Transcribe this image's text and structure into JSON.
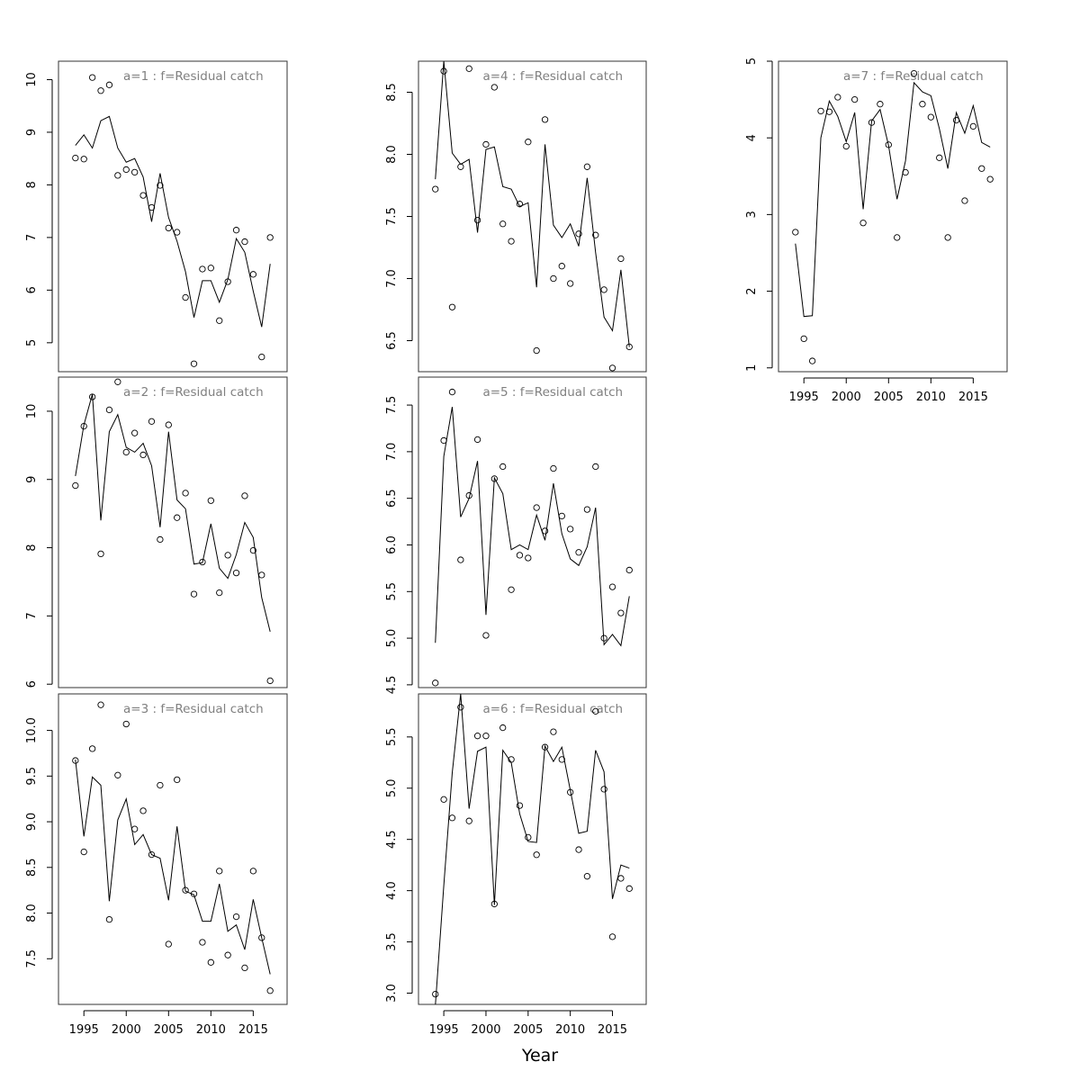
{
  "xlabel": "Year",
  "chart_data": [
    {
      "type": "line",
      "title": "a=1  :  f=Residual catch",
      "x": [
        1994,
        1995,
        1996,
        1997,
        1998,
        1999,
        2000,
        2001,
        2002,
        2003,
        2004,
        2005,
        2006,
        2007,
        2008,
        2009,
        2010,
        2011,
        2012,
        2013,
        2014,
        2015,
        2016,
        2017
      ],
      "xlim": [
        1992,
        2019
      ],
      "ylim": [
        4.45,
        10.35
      ],
      "xticks": [
        1995,
        2000,
        2005,
        2010,
        2015
      ],
      "yticks": [
        5,
        6,
        7,
        8,
        9,
        10
      ],
      "show_x_axis": false,
      "series": [
        {
          "role": "fitted",
          "values": [
            8.75,
            8.95,
            8.7,
            9.22,
            9.3,
            8.7,
            8.43,
            8.5,
            8.15,
            7.3,
            8.22,
            7.38,
            6.93,
            6.35,
            5.48,
            6.18,
            6.18,
            5.77,
            6.2,
            6.98,
            6.72,
            5.98,
            5.3,
            6.5
          ]
        },
        {
          "role": "observed",
          "values": [
            8.51,
            8.49,
            10.04,
            9.79,
            9.9,
            8.18,
            8.29,
            8.24,
            7.8,
            7.57,
            7.99,
            7.18,
            7.1,
            5.86,
            4.6,
            6.4,
            6.42,
            5.42,
            6.16,
            7.14,
            6.92,
            6.3,
            4.73,
            7.0
          ]
        }
      ]
    },
    {
      "type": "line",
      "title": "a=2  :  f=Residual catch",
      "x": [
        1994,
        1995,
        1996,
        1997,
        1998,
        1999,
        2000,
        2001,
        2002,
        2003,
        2004,
        2005,
        2006,
        2007,
        2008,
        2009,
        2010,
        2011,
        2012,
        2013,
        2014,
        2015,
        2016,
        2017
      ],
      "xlim": [
        1992,
        2019
      ],
      "ylim": [
        5.95,
        10.5
      ],
      "xticks": [
        1995,
        2000,
        2005,
        2010,
        2015
      ],
      "yticks": [
        6,
        7,
        8,
        9,
        10
      ],
      "show_x_axis": false,
      "series": [
        {
          "role": "fitted",
          "values": [
            9.05,
            9.8,
            10.25,
            8.4,
            9.7,
            9.95,
            9.47,
            9.4,
            9.53,
            9.2,
            8.3,
            9.7,
            8.7,
            8.57,
            7.76,
            7.78,
            8.35,
            7.7,
            7.55,
            7.9,
            8.37,
            8.15,
            7.27,
            6.77
          ]
        },
        {
          "role": "observed",
          "values": [
            8.91,
            9.78,
            10.21,
            7.91,
            10.02,
            10.43,
            9.4,
            9.68,
            9.36,
            9.85,
            8.12,
            9.8,
            8.44,
            8.8,
            7.32,
            7.79,
            8.69,
            7.34,
            7.89,
            7.63,
            8.76,
            7.96,
            7.6,
            6.05
          ]
        }
      ]
    },
    {
      "type": "line",
      "title": "a=3  :  f=Residual catch",
      "x": [
        1994,
        1995,
        1996,
        1997,
        1998,
        1999,
        2000,
        2001,
        2002,
        2003,
        2004,
        2005,
        2006,
        2007,
        2008,
        2009,
        2010,
        2011,
        2012,
        2013,
        2014,
        2015,
        2016,
        2017
      ],
      "xlim": [
        1992,
        2019
      ],
      "ylim": [
        7.0,
        10.4
      ],
      "xticks": [
        1995,
        2000,
        2005,
        2010,
        2015
      ],
      "yticks": [
        7.5,
        8.0,
        8.5,
        9.0,
        9.5,
        10.0
      ],
      "show_x_axis": true,
      "series": [
        {
          "role": "fitted",
          "values": [
            9.68,
            8.84,
            9.49,
            9.4,
            8.13,
            9.02,
            9.25,
            8.75,
            8.86,
            8.64,
            8.6,
            8.14,
            8.95,
            8.24,
            8.2,
            7.91,
            7.91,
            8.32,
            7.8,
            7.87,
            7.6,
            8.15,
            7.73,
            7.33
          ]
        },
        {
          "role": "observed",
          "values": [
            9.67,
            8.67,
            9.8,
            10.28,
            7.93,
            9.51,
            10.07,
            8.92,
            9.12,
            8.64,
            9.4,
            7.66,
            9.46,
            8.25,
            8.21,
            7.68,
            7.46,
            8.46,
            7.54,
            7.96,
            7.4,
            8.46,
            7.73,
            7.15
          ]
        }
      ]
    },
    {
      "type": "line",
      "title": "a=4  :  f=Residual catch",
      "x": [
        1994,
        1995,
        1996,
        1997,
        1998,
        1999,
        2000,
        2001,
        2002,
        2003,
        2004,
        2005,
        2006,
        2007,
        2008,
        2009,
        2010,
        2011,
        2012,
        2013,
        2014,
        2015,
        2016,
        2017
      ],
      "xlim": [
        1992,
        2019
      ],
      "ylim": [
        6.25,
        8.75
      ],
      "xticks": [
        1995,
        2000,
        2005,
        2010,
        2015
      ],
      "yticks": [
        6.5,
        7.0,
        7.5,
        8.0,
        8.5
      ],
      "show_x_axis": false,
      "series": [
        {
          "role": "fitted",
          "values": [
            7.8,
            8.75,
            8.01,
            7.92,
            7.96,
            7.37,
            8.04,
            8.06,
            7.74,
            7.72,
            7.58,
            7.61,
            6.93,
            8.08,
            7.43,
            7.33,
            7.44,
            7.26,
            7.81,
            7.21,
            6.69,
            6.58,
            7.07,
            6.45
          ]
        },
        {
          "role": "observed",
          "values": [
            7.72,
            8.67,
            6.77,
            7.9,
            8.69,
            7.47,
            8.08,
            8.54,
            7.44,
            7.3,
            7.6,
            8.1,
            6.42,
            8.28,
            7.0,
            7.1,
            6.96,
            7.36,
            7.9,
            7.35,
            6.91,
            6.28,
            7.16,
            6.45
          ]
        }
      ]
    },
    {
      "type": "line",
      "title": "a=5  :  f=Residual catch",
      "x": [
        1994,
        1995,
        1996,
        1997,
        1998,
        1999,
        2000,
        2001,
        2002,
        2003,
        2004,
        2005,
        2006,
        2007,
        2008,
        2009,
        2010,
        2011,
        2012,
        2013,
        2014,
        2015,
        2016,
        2017
      ],
      "xlim": [
        1992,
        2019
      ],
      "ylim": [
        4.47,
        7.8
      ],
      "xticks": [
        1995,
        2000,
        2005,
        2010,
        2015
      ],
      "yticks": [
        4.5,
        5.0,
        5.5,
        6.0,
        6.5,
        7.0,
        7.5
      ],
      "show_x_axis": false,
      "series": [
        {
          "role": "fitted",
          "values": [
            4.95,
            6.95,
            7.48,
            6.3,
            6.5,
            6.9,
            5.25,
            6.72,
            6.55,
            5.95,
            6.0,
            5.95,
            6.32,
            6.05,
            6.66,
            6.12,
            5.85,
            5.78,
            5.98,
            6.4,
            4.93,
            5.04,
            4.92,
            5.45
          ]
        },
        {
          "role": "observed",
          "values": [
            4.52,
            7.12,
            7.64,
            5.84,
            6.53,
            7.13,
            5.03,
            6.71,
            6.84,
            5.52,
            5.89,
            5.86,
            6.4,
            6.15,
            6.82,
            6.31,
            6.17,
            5.92,
            6.38,
            6.84,
            5.0,
            5.55,
            5.27,
            5.73
          ]
        }
      ]
    },
    {
      "type": "line",
      "title": "a=6  :  f=Residual catch",
      "x": [
        1994,
        1995,
        1996,
        1997,
        1998,
        1999,
        2000,
        2001,
        2002,
        2003,
        2004,
        2005,
        2006,
        2007,
        2008,
        2009,
        2010,
        2011,
        2012,
        2013,
        2014,
        2015,
        2016,
        2017
      ],
      "xlim": [
        1992,
        2019
      ],
      "ylim": [
        2.89,
        5.92
      ],
      "xticks": [
        1995,
        2000,
        2005,
        2010,
        2015
      ],
      "yticks": [
        3.0,
        3.5,
        4.0,
        4.5,
        5.0,
        5.5
      ],
      "show_x_axis": true,
      "series": [
        {
          "role": "fitted",
          "values": [
            2.88,
            4.05,
            5.15,
            5.92,
            4.8,
            5.36,
            5.4,
            3.86,
            5.37,
            5.25,
            4.75,
            4.48,
            4.47,
            5.41,
            5.26,
            5.4,
            4.98,
            4.56,
            4.58,
            5.37,
            5.16,
            3.92,
            4.25,
            4.22
          ]
        },
        {
          "role": "observed",
          "values": [
            2.99,
            4.89,
            4.71,
            5.79,
            4.68,
            5.51,
            5.51,
            3.87,
            5.59,
            5.28,
            4.83,
            4.52,
            4.35,
            5.4,
            5.55,
            5.28,
            4.96,
            4.4,
            4.14,
            5.75,
            4.99,
            3.55,
            4.12,
            4.02
          ]
        }
      ]
    },
    {
      "type": "line",
      "title": "a=7  :  f=Residual catch",
      "x": [
        1994,
        1995,
        1996,
        1997,
        1998,
        1999,
        2000,
        2001,
        2002,
        2003,
        2004,
        2005,
        2006,
        2007,
        2008,
        2009,
        2010,
        2011,
        2012,
        2013,
        2014,
        2015,
        2016,
        2017
      ],
      "xlim": [
        1992,
        2019
      ],
      "ylim": [
        0.95,
        5.0
      ],
      "xticks": [
        1995,
        2000,
        2005,
        2010,
        2015
      ],
      "yticks": [
        1,
        2,
        3,
        4,
        5
      ],
      "show_x_axis": true,
      "series": [
        {
          "role": "fitted",
          "values": [
            2.62,
            1.67,
            1.68,
            4.0,
            4.48,
            4.28,
            3.95,
            4.33,
            3.07,
            4.22,
            4.37,
            3.9,
            3.2,
            3.7,
            4.72,
            4.6,
            4.55,
            4.12,
            3.6,
            4.33,
            4.06,
            4.42,
            3.94,
            3.88
          ]
        },
        {
          "role": "observed",
          "values": [
            2.77,
            1.38,
            1.09,
            4.35,
            4.34,
            4.53,
            3.89,
            4.5,
            2.89,
            4.2,
            4.44,
            3.91,
            2.7,
            3.55,
            4.84,
            4.44,
            4.27,
            3.74,
            2.7,
            4.23,
            3.18,
            4.15,
            3.6,
            3.46
          ]
        }
      ]
    }
  ]
}
